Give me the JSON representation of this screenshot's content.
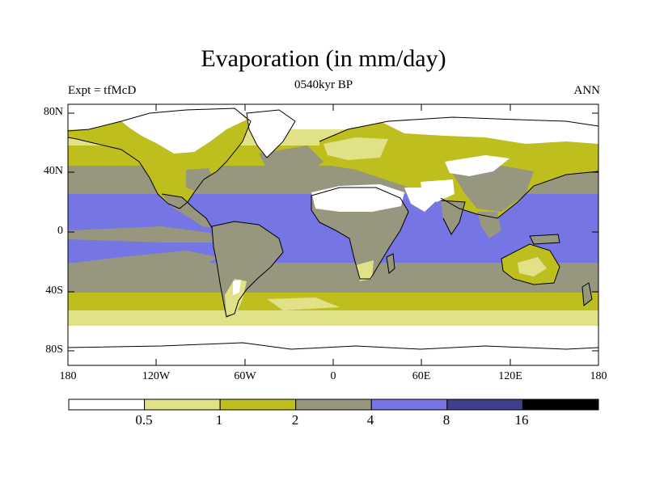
{
  "title": "Evaporation (in mm/day)",
  "subtitle_left": "Expt = tfMcD",
  "subtitle_center": "0540kyr BP",
  "subtitle_right": "ANN",
  "lat_labels": [
    "80N",
    "40N",
    "0",
    "40S",
    "80S"
  ],
  "lon_labels": [
    "180",
    "120W",
    "60W",
    "0",
    "60E",
    "120E",
    "180"
  ],
  "colorbar": {
    "colors": [
      "#ffffff",
      "#e1e187",
      "#bebe1e",
      "#97967f",
      "#7575e4",
      "#3f3f8d",
      "#000000"
    ],
    "labels": [
      "0.5",
      "1",
      "2",
      "4",
      "8",
      "16"
    ]
  }
}
